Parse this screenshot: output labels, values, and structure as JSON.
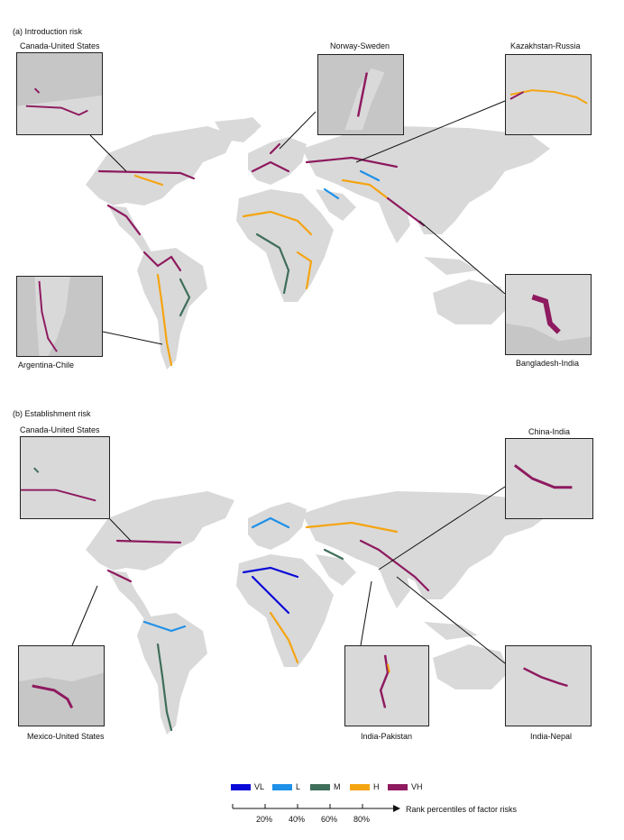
{
  "panel_a": {
    "title": "(a) Introduction risk",
    "insets": {
      "canada_us": "Canada-United States",
      "norway_sweden": "Norway-Sweden",
      "kazakhstan_russia": "Kazakhstan-Russia",
      "argentina_chile": "Argentina-Chile",
      "bangladesh_india": "Bangladesh-India"
    }
  },
  "panel_b": {
    "title": "(b) Establishment risk",
    "insets": {
      "canada_us": "Canada-United States",
      "china_india": "China-India",
      "mexico_us": "Mexico-United States",
      "india_pakistan": "India-Pakistan",
      "india_nepal": "India-Nepal"
    }
  },
  "legend": {
    "items": [
      {
        "label": "VL",
        "color": "#0a0ad8"
      },
      {
        "label": "L",
        "color": "#1e90e8"
      },
      {
        "label": "M",
        "color": "#3f6e5a"
      },
      {
        "label": "H",
        "color": "#f5a411"
      },
      {
        "label": "VH",
        "color": "#8e1a5f"
      }
    ],
    "ticks": [
      "20%",
      "40%",
      "60%",
      "80%"
    ],
    "axis_label": "Rank percentiles of factor risks"
  },
  "colors": {
    "land": "#d9d9d9",
    "inset_bg": "#c6c6c6",
    "line": "#000000"
  }
}
